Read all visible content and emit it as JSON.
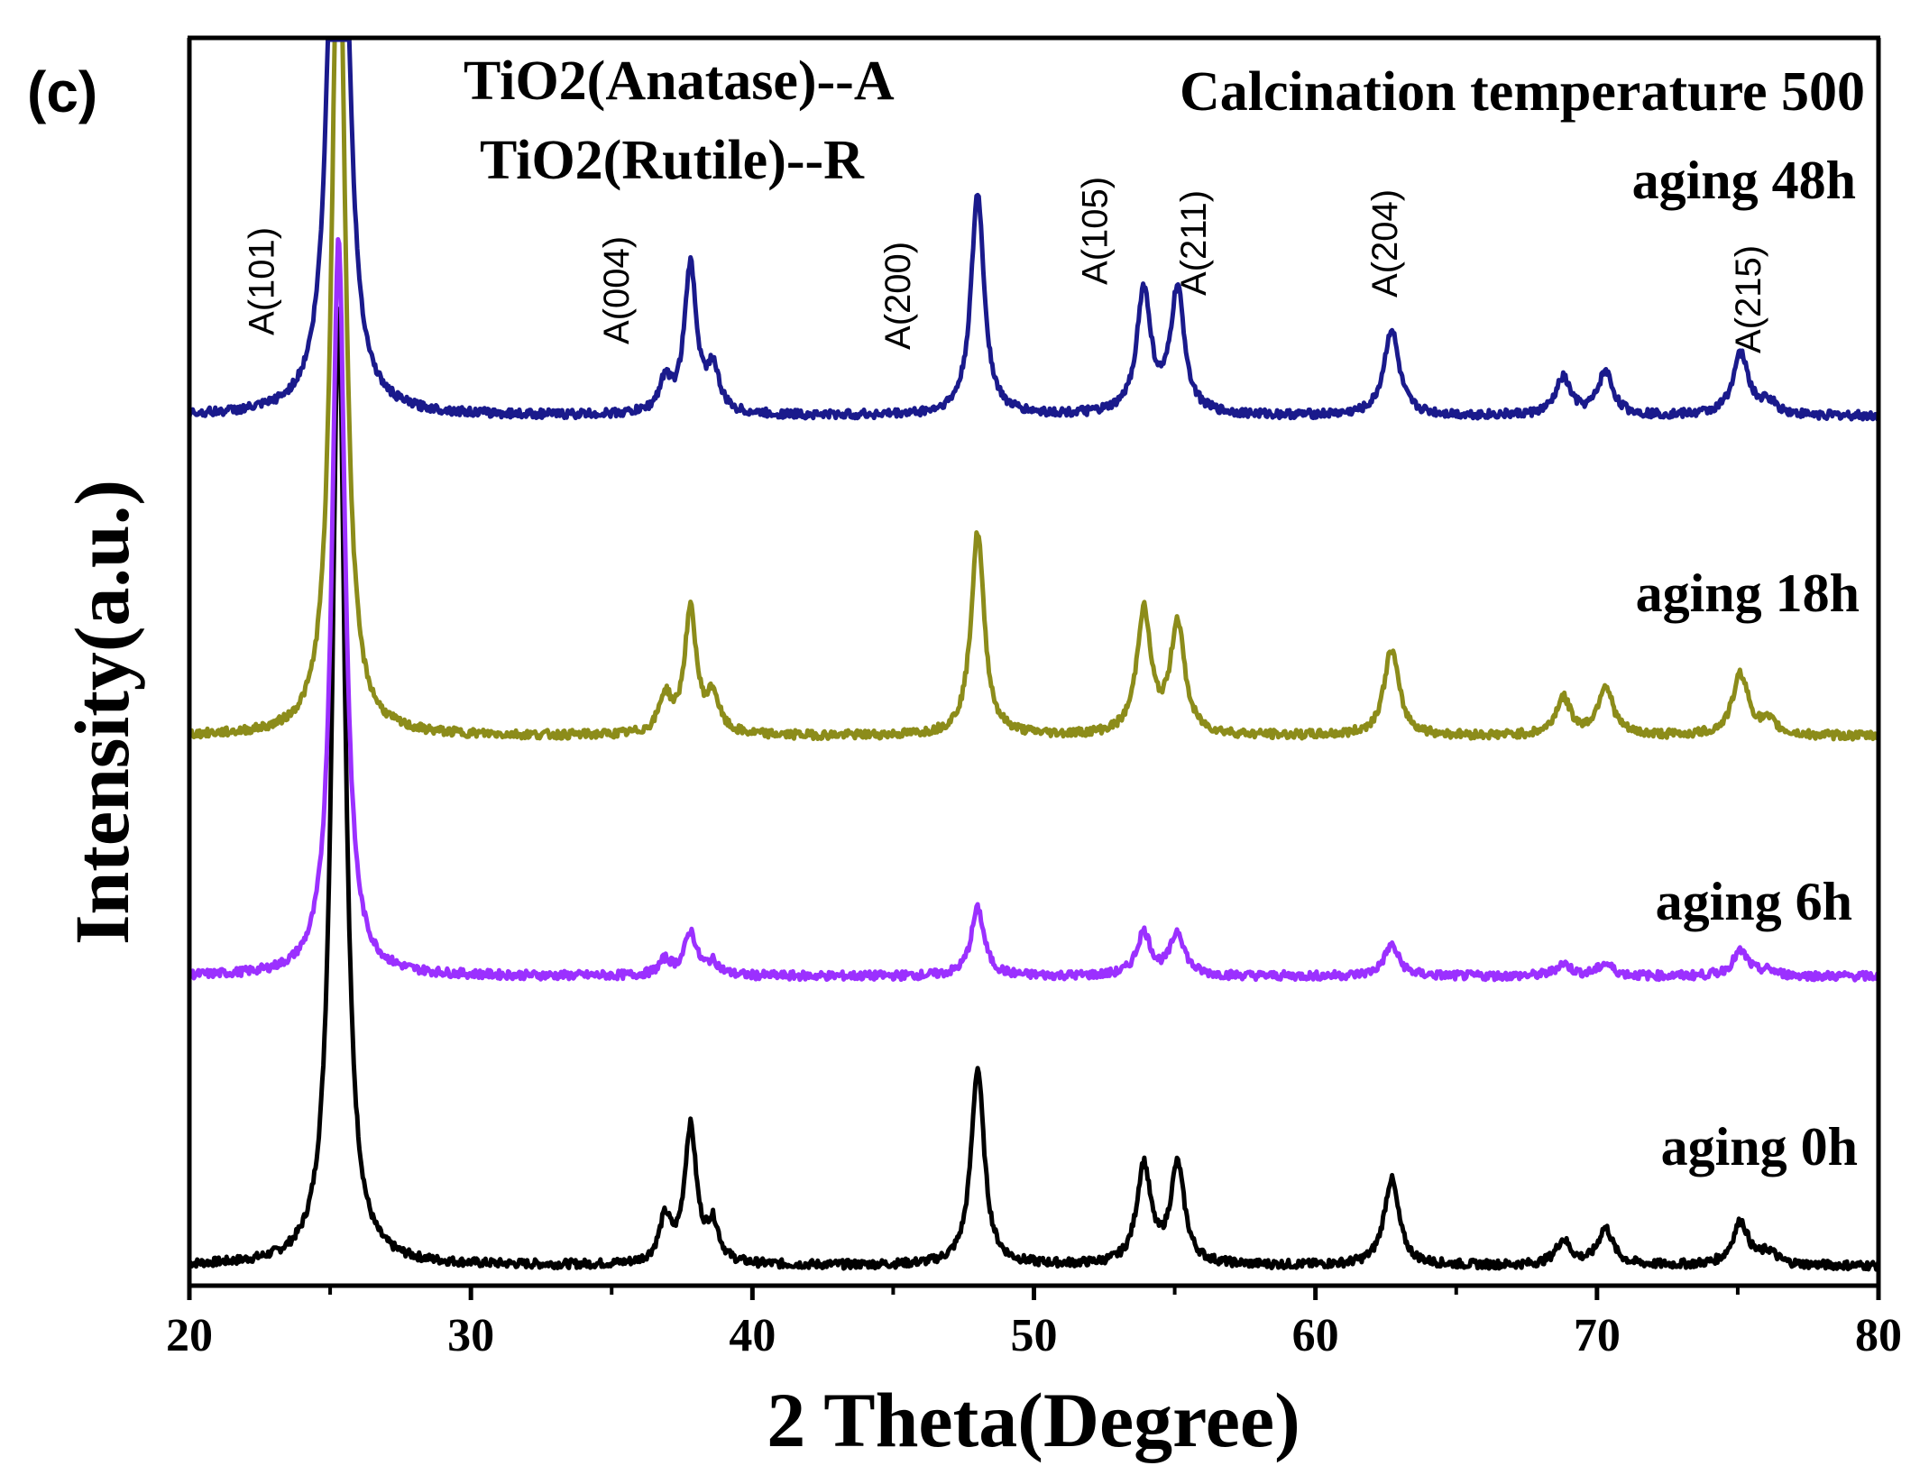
{
  "chart_data": {
    "type": "line",
    "panel_label": "(c)",
    "title": "Calcination temperature 500",
    "xlabel": "2 Theta(Degree)",
    "ylabel": "Intensity(a.u.)",
    "xlim": [
      20,
      80
    ],
    "ylim": [
      0,
      1
    ],
    "xticks": [
      20,
      30,
      40,
      50,
      60,
      70,
      80
    ],
    "xtick_labels": [
      "20",
      "30",
      "40",
      "50",
      "60",
      "70",
      "80"
    ],
    "grid": false,
    "legend_text": [
      "TiO2(Anatase)--A",
      "TiO2(Rutile)--R"
    ],
    "peak_labels": [
      {
        "label": "A(101)",
        "x": 23.0
      },
      {
        "label": "A(004)",
        "x": 35.6
      },
      {
        "label": "A(200)",
        "x": 45.6
      },
      {
        "label": "A(105)",
        "x": 52.6
      },
      {
        "label": "A(211)",
        "x": 56.1
      },
      {
        "label": "A(204)",
        "x": 62.9
      },
      {
        "label": "A(215)",
        "x": 75.8
      }
    ],
    "peaks": [
      {
        "x": 25.3,
        "w": 0.28
      },
      {
        "x": 36.9,
        "w": 0.26
      },
      {
        "x": 37.8,
        "w": 0.26
      },
      {
        "x": 38.6,
        "w": 0.26
      },
      {
        "x": 48.0,
        "w": 0.28
      },
      {
        "x": 53.9,
        "w": 0.3
      },
      {
        "x": 55.1,
        "w": 0.3
      },
      {
        "x": 62.7,
        "w": 0.32
      },
      {
        "x": 68.8,
        "w": 0.32
      },
      {
        "x": 70.3,
        "w": 0.32
      },
      {
        "x": 75.1,
        "w": 0.34
      },
      {
        "x": 76.1,
        "w": 0.34
      }
    ],
    "series": [
      {
        "name": "aging 0h",
        "color": "#000000",
        "baseline": 0.0,
        "intensities": [
          0.78,
          0.035,
          0.11,
          0.03,
          0.16,
          0.08,
          0.08,
          0.07,
          0.02,
          0.03,
          0.035,
          0.01
        ]
      },
      {
        "name": "aging 6h",
        "color": "#9b30ff",
        "baseline": 0.235,
        "intensities": [
          0.6,
          0.012,
          0.035,
          0.01,
          0.055,
          0.035,
          0.035,
          0.025,
          0.01,
          0.01,
          0.02,
          0.004
        ]
      },
      {
        "name": "aging 18h",
        "color": "#8c8c1a",
        "baseline": 0.43,
        "intensities": [
          0.72,
          0.03,
          0.1,
          0.03,
          0.165,
          0.1,
          0.09,
          0.07,
          0.03,
          0.04,
          0.05,
          0.01
        ]
      },
      {
        "name": "aging 48h",
        "color": "#1a1a8c",
        "baseline": 0.69,
        "intensities": [
          0.9,
          0.025,
          0.12,
          0.035,
          0.18,
          0.1,
          0.1,
          0.07,
          0.03,
          0.035,
          0.05,
          0.01
        ]
      }
    ]
  }
}
